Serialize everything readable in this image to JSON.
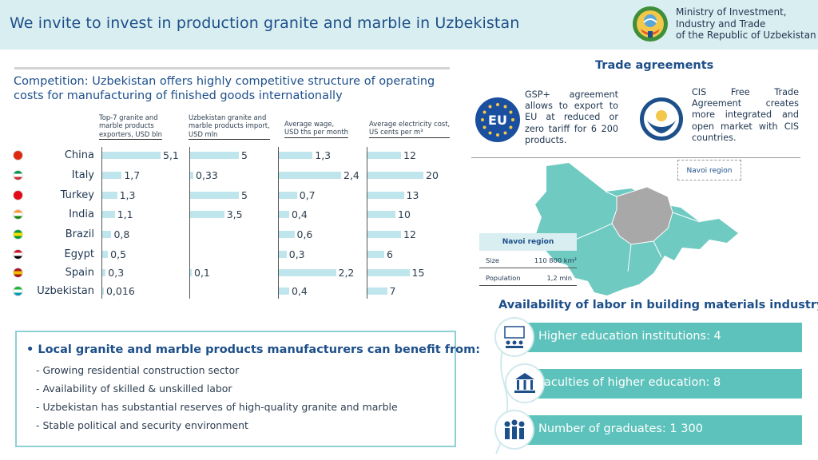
{
  "header": {
    "title": "We invite to invest in production granite and marble in Uzbekistan",
    "ministry_line1": "Ministry of Investment,",
    "ministry_line2": "Industry and Trade",
    "ministry_line3": "of the Republic of Uzbekistan"
  },
  "competition": {
    "title": "Competition: Uzbekistan offers highly competitive structure of operating costs for manufacturing of finished goods  internationally",
    "columns": [
      {
        "line1": "Top-7 granite and",
        "line2": "marble products",
        "line3": "exporters, USD bln"
      },
      {
        "line1": "Uzbekistan granite and",
        "line2": "marble products import,",
        "line3": "USD mln"
      },
      {
        "line1": "Average wage,",
        "line2": "USD ths per month"
      },
      {
        "line1": "Average electricity cost,",
        "line2": "US cents per m³"
      }
    ],
    "countries": [
      "China",
      "Italy",
      "Turkey",
      "India",
      "Brazil",
      "Egypt",
      "Spain",
      "Uzbekistan"
    ],
    "exports": [
      "5,1",
      "1,7",
      "1,3",
      "1,1",
      "0,8",
      "0,5",
      "0,3",
      "0,016"
    ],
    "imports": [
      "5",
      "0,33",
      "5",
      "3,5",
      "",
      "",
      "0,1",
      ""
    ],
    "wage": [
      "1,3",
      "2,4",
      "0,7",
      "0,4",
      "0,6",
      "0,3",
      "2,2",
      "0,4"
    ],
    "electricity": [
      "12",
      "20",
      "13",
      "10",
      "12",
      "6",
      "15",
      "7"
    ]
  },
  "chart_data": {
    "type": "bar",
    "categories": [
      "China",
      "Italy",
      "Turkey",
      "India",
      "Brazil",
      "Egypt",
      "Spain",
      "Uzbekistan"
    ],
    "series": [
      {
        "name": "Top-7 granite and marble products exporters, USD bln",
        "values": [
          5.1,
          1.7,
          1.3,
          1.1,
          0.8,
          0.5,
          0.3,
          0.016
        ]
      },
      {
        "name": "Uzbekistan granite and marble products import, USD mln",
        "values": [
          5,
          0.33,
          5,
          3.5,
          null,
          null,
          0.1,
          null
        ]
      },
      {
        "name": "Average wage, USD ths per month",
        "values": [
          1.3,
          2.4,
          0.7,
          0.4,
          0.6,
          0.3,
          2.2,
          0.4
        ]
      },
      {
        "name": "Average electricity cost, US cents per m³",
        "values": [
          12,
          20,
          13,
          10,
          12,
          6,
          15,
          7
        ]
      }
    ]
  },
  "benefits": {
    "title": "Local granite and marble products manufacturers can benefit from:",
    "items": [
      "- Growing residential construction sector",
      "- Availability of skilled & unskilled labor",
      "- Uzbekistan has substantial reserves of high-quality granite and marble",
      "- Stable political and security environment"
    ]
  },
  "trade": {
    "title": "Trade agreements",
    "gsp_text": "GSP+ agreement allows to export to EU at reduced or zero tariff for 6 200 products.",
    "eu_badge": "EU",
    "cis_text": "CIS Free Trade Agreement creates more integrated and open market with CIS countries."
  },
  "navoi": {
    "map_label": "Navoi region",
    "table_title": "Navoi region",
    "size_label": "Size",
    "size_value": "110 800 km²",
    "population_label": "Population",
    "population_value": "1,2 mln"
  },
  "labor": {
    "title": "Availability of labor in building materials industry",
    "items": [
      "Higher education institutions: 4",
      "Faculties of higher education: 8",
      "Number of graduates: 1 300"
    ]
  },
  "colors": {
    "header_bg": "#d9eef0",
    "title_blue": "#1d4f8a",
    "bar_light": "#bfe6ec",
    "labor_teal": "#5cc2bb",
    "eu_blue": "#1a4fa0"
  }
}
